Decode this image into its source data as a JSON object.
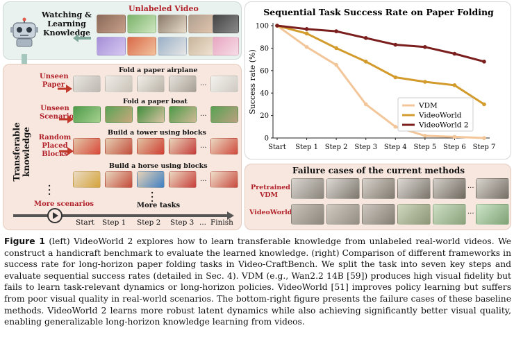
{
  "left": {
    "watching_label": "Watching & Learning Knowledge",
    "unlabeled_label": "Unlabeled Video",
    "transferable_label": "Transferable knowledge",
    "rows": [
      {
        "side_label": "Unseen Paper",
        "task": "Fold a paper airplane"
      },
      {
        "side_label": "Unseen Scenario",
        "task": "Fold a paper boat"
      },
      {
        "side_label": "Random Placed Blocks",
        "task": "Build a tower using blocks"
      },
      {
        "side_label": "",
        "task": "Build a horse using blocks"
      }
    ],
    "more_scenarios": "More scenarios",
    "more_tasks": "More tasks",
    "ellipsis": "...",
    "timeline": [
      "Start",
      "Step 1",
      "Step 2",
      "Step 3",
      "...",
      "Finish"
    ]
  },
  "fail": {
    "title": "Failure cases of the current methods",
    "rows": [
      {
        "label": "Pretrained VDM"
      },
      {
        "label": "VideoWorld"
      }
    ]
  },
  "caption": {
    "lead": "Figure 1",
    "text": "(left) VideoWorld 2 explores how to learn transferable knowledge from unlabeled real-world videos. We construct a handicraft benchmark to evaluate the learned knowledge. (right) Comparison of different frameworks in success rate for long-horizon paper folding tasks in Video-CraftBench. We split the task into seven key steps and evaluate sequential success rates (detailed in Sec. 4). VDM (e.g., Wan2.2 14B [59]) produces high visual fidelity but fails to learn task-relevant dynamics or long-horizon policies. VideoWorld [51] improves policy learning but suffers from poor visual quality in real-world scenarios. The bottom-right figure presents the failure cases of these baseline methods. VideoWorld 2 learns more robust latent dynamics while also achieving significantly better visual quality, enabling generalizable long-horizon knowledge learning from videos."
  },
  "colors": {
    "vdm": "#f3c69a",
    "videoworld": "#d39a2c",
    "videoworld2": "#7a1e1e"
  },
  "chart_data": {
    "type": "line",
    "title": "Sequential Task Success Rate on Paper Folding",
    "xlabel": "",
    "ylabel": "Success rate (%)",
    "categories": [
      "Start",
      "Step 1",
      "Step 2",
      "Step 3",
      "Step 4",
      "Step 5",
      "Step 6",
      "Step 7"
    ],
    "ylim": [
      0,
      100
    ],
    "yticks": [
      "0",
      "20",
      "40",
      "60",
      "80",
      "100"
    ],
    "legend_position": "center-right",
    "grid": false,
    "series": [
      {
        "name": "VDM",
        "values": [
          100,
          81,
          65,
          30,
          10,
          2,
          1,
          0
        ]
      },
      {
        "name": "VideoWorld",
        "values": [
          100,
          93,
          80,
          68,
          54,
          50,
          47,
          30
        ]
      },
      {
        "name": "VideoWorld 2",
        "values": [
          100,
          97,
          95,
          89,
          83,
          81,
          75,
          68
        ]
      }
    ]
  }
}
